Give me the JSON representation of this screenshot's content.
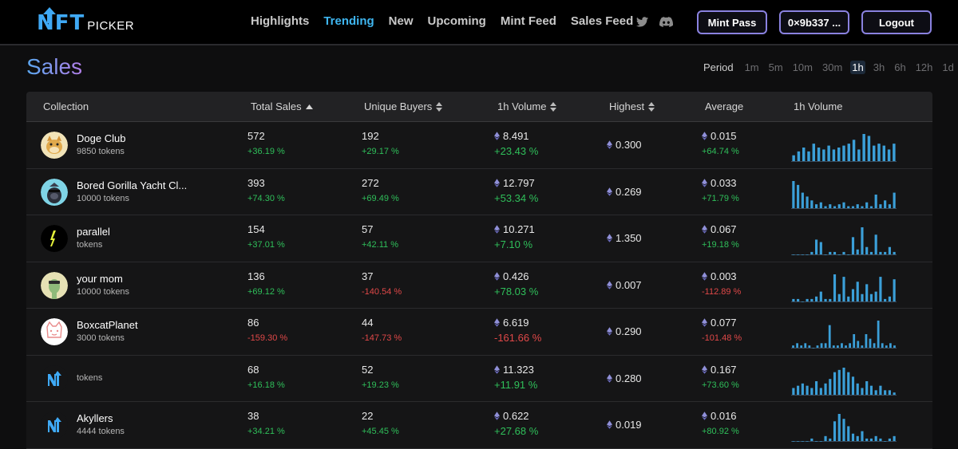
{
  "header": {
    "logo_nft": "NFT",
    "logo_picker": "PICKER",
    "nav": [
      "Highlights",
      "Trending",
      "New",
      "Upcoming",
      "Mint Feed",
      "Sales Feed"
    ],
    "active_nav": "Trending",
    "social_icons": [
      "twitter-icon",
      "discord-icon"
    ],
    "buttons": {
      "mint": "Mint Pass",
      "wallet": "0×9b337 ...",
      "logout": "Logout"
    },
    "accent": "#3fb6f0"
  },
  "page": {
    "title": "Sales"
  },
  "period": {
    "label": "Period",
    "options": [
      "1m",
      "5m",
      "10m",
      "30m",
      "1h",
      "3h",
      "6h",
      "12h",
      "1d"
    ],
    "active": "1h"
  },
  "table": {
    "headers": {
      "collection": "Collection",
      "total_sales": "Total Sales",
      "unique_buyers": "Unique Buyers",
      "volume": "1h Volume",
      "highest": "Highest",
      "average": "Average",
      "volume_chart": "1h Volume"
    },
    "rows": [
      {
        "name": "Doge Club",
        "tokens": "9850 tokens",
        "avatar": "doge",
        "sales": "572",
        "sales_chg": "+36.19 %",
        "buyers": "192",
        "buyers_chg": "+29.17 %",
        "volume": "8.491",
        "volume_chg": "+23.43 %",
        "highest": "0.300",
        "average": "0.015",
        "average_chg": "+64.74 %",
        "spark": [
          3,
          5,
          7,
          5,
          9,
          7,
          6,
          8,
          6,
          7,
          8,
          9,
          11,
          6,
          14,
          13,
          8,
          9,
          8,
          6,
          9
        ]
      },
      {
        "name": "Bored Gorilla Yacht Cl...",
        "tokens": "10000 tokens",
        "avatar": "gorilla",
        "sales": "393",
        "sales_chg": "+74.30 %",
        "buyers": "272",
        "buyers_chg": "+69.49 %",
        "volume": "12.797",
        "volume_chg": "+53.34 %",
        "highest": "0.269",
        "average": "0.033",
        "average_chg": "+71.79 %",
        "spark": [
          14,
          12,
          8,
          6,
          4,
          2,
          3,
          1,
          2,
          1,
          2,
          3,
          1,
          1,
          2,
          1,
          3,
          1,
          7,
          2,
          4,
          2,
          8
        ]
      },
      {
        "name": "parallel",
        "tokens": "tokens",
        "avatar": "parallel",
        "sales": "154",
        "sales_chg": "+37.01 %",
        "buyers": "57",
        "buyers_chg": "+42.11 %",
        "volume": "10.271",
        "volume_chg": "+7.10 %",
        "highest": "1.350",
        "average": "0.067",
        "average_chg": "+19.18 %",
        "spark": [
          0,
          0,
          0,
          0,
          1,
          6,
          5,
          0,
          1,
          1,
          0,
          1,
          0,
          7,
          2,
          11,
          3,
          1,
          8,
          1,
          1,
          3,
          1
        ]
      },
      {
        "name": "your mom",
        "tokens": "10000 tokens",
        "avatar": "mom",
        "sales": "136",
        "sales_chg": "+69.12 %",
        "buyers": "37",
        "buyers_chg": "-140.54 %",
        "volume": "0.426",
        "volume_chg": "+78.03 %",
        "highest": "0.007",
        "average": "0.003",
        "average_chg": "-112.89 %",
        "spark": [
          1,
          1,
          0,
          1,
          1,
          2,
          4,
          1,
          1,
          11,
          3,
          10,
          2,
          5,
          8,
          3,
          7,
          3,
          4,
          10,
          1,
          2,
          9
        ]
      },
      {
        "name": "BoxcatPlanet",
        "tokens": "3000 tokens",
        "avatar": "boxcat",
        "sales": "86",
        "sales_chg": "-159.30 %",
        "buyers": "44",
        "buyers_chg": "-147.73 %",
        "volume": "6.619",
        "volume_chg": "-161.66 %",
        "highest": "0.290",
        "average": "0.077",
        "average_chg": "-101.48 %",
        "spark": [
          1,
          2,
          1,
          2,
          1,
          0,
          1,
          2,
          2,
          10,
          1,
          1,
          2,
          1,
          2,
          6,
          3,
          1,
          6,
          4,
          2,
          12,
          2,
          1,
          2,
          1
        ]
      },
      {
        "name": "",
        "tokens": "tokens",
        "avatar": "nft",
        "sales": "68",
        "sales_chg": "+16.18 %",
        "buyers": "52",
        "buyers_chg": "+19.23 %",
        "volume": "11.323",
        "volume_chg": "+11.91 %",
        "highest": "0.280",
        "average": "0.167",
        "average_chg": "+73.60 %",
        "spark": [
          3,
          4,
          5,
          4,
          3,
          6,
          3,
          5,
          7,
          10,
          11,
          12,
          10,
          8,
          5,
          3,
          6,
          4,
          2,
          4,
          2,
          2,
          1
        ]
      },
      {
        "name": "Akyllers",
        "tokens": "4444 tokens",
        "avatar": "nft",
        "sales": "38",
        "sales_chg": "+34.21 %",
        "buyers": "22",
        "buyers_chg": "+45.45 %",
        "volume": "0.622",
        "volume_chg": "+27.68 %",
        "highest": "0.019",
        "average": "0.016",
        "average_chg": "+80.92 %",
        "spark": [
          0,
          0,
          0,
          0,
          1,
          0,
          0,
          2,
          1,
          8,
          11,
          9,
          6,
          3,
          2,
          4,
          1,
          1,
          2,
          1,
          0,
          1,
          2
        ]
      }
    ]
  }
}
